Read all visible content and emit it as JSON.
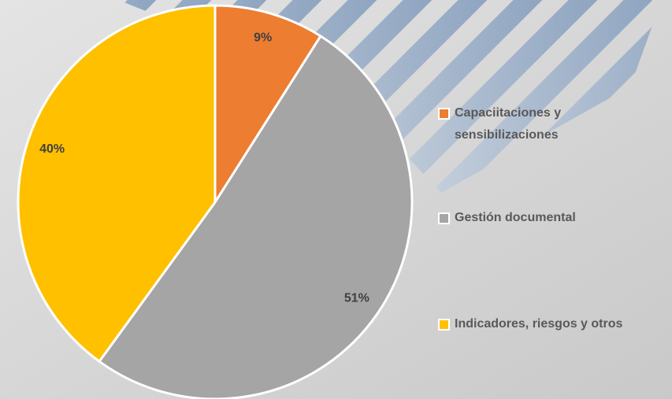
{
  "chart_data": {
    "type": "pie",
    "categories": [
      "Capaciitaciones y sensibilizaciones",
      "Gestión documental",
      "Indicadores, riesgos y otros"
    ],
    "values": [
      9,
      51,
      40
    ],
    "value_labels": [
      "9%",
      "51%",
      "40%"
    ],
    "colors": [
      "#ED7D31",
      "#A5A5A5",
      "#FFC000"
    ],
    "legend": "right"
  }
}
